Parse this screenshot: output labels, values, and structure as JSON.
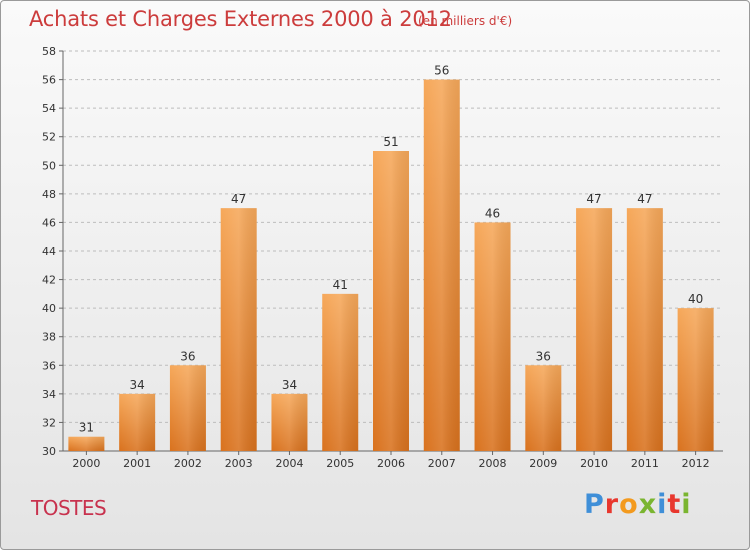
{
  "header": {
    "title": "Achats et Charges Externes 2000 à 2012",
    "subtitle": "(en milliers d'€)"
  },
  "footer": {
    "commune": "TOSTES",
    "logo": "Proxiti"
  },
  "colors": {
    "bar_light": "#f6a85a",
    "bar_dark": "#d9721e",
    "title": "#cc3c3c",
    "commune": "#c8324e",
    "grid": "#bdbdbd"
  },
  "chart_data": {
    "type": "bar",
    "title": "Achats et Charges Externes 2000 à 2012",
    "subtitle": "(en milliers d'€)",
    "xlabel": "",
    "ylabel": "",
    "categories": [
      "2000",
      "2001",
      "2002",
      "2003",
      "2004",
      "2005",
      "2006",
      "2007",
      "2008",
      "2009",
      "2010",
      "2011",
      "2012"
    ],
    "values": [
      31,
      34,
      36,
      47,
      34,
      41,
      51,
      56,
      46,
      36,
      47,
      47,
      40
    ],
    "ylim": [
      30,
      58
    ],
    "yticks": [
      30,
      32,
      34,
      36,
      38,
      40,
      42,
      44,
      46,
      48,
      50,
      52,
      54,
      56,
      58
    ],
    "grid": true,
    "data_labels": true
  }
}
